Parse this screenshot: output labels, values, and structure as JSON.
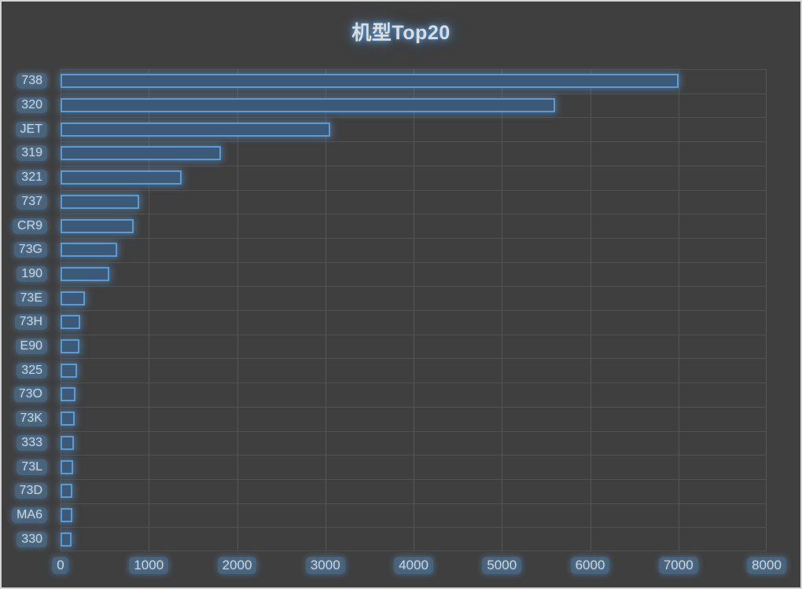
{
  "window": {
    "background_color": "#3F3F3F",
    "frame_border_color": "#D4D4D4"
  },
  "chart_data": {
    "type": "bar",
    "orientation": "horizontal",
    "title": "机型Top20",
    "xlabel": "",
    "ylabel": "",
    "categories": [
      "738",
      "320",
      "JET",
      "319",
      "321",
      "737",
      "CR9",
      "73G",
      "190",
      "73E",
      "73H",
      "E90",
      "325",
      "73O",
      "73K",
      "333",
      "73L",
      "73D",
      "MA6",
      "330"
    ],
    "values": [
      7000,
      5600,
      3060,
      1820,
      1370,
      890,
      830,
      640,
      550,
      280,
      220,
      215,
      190,
      165,
      160,
      150,
      140,
      135,
      130,
      125
    ],
    "xlim": [
      0,
      8000
    ],
    "x_ticks": [
      0,
      1000,
      2000,
      3000,
      4000,
      5000,
      6000,
      7000,
      8000
    ],
    "grid": true,
    "legend": "none",
    "colors": {
      "bar_fill": "#3C5A78",
      "bar_border": "#5B9BD5",
      "glow": "#5B9BD5",
      "gridline": "#565656",
      "text": "#CFD3D6",
      "title_text": "#DADDDF"
    }
  }
}
